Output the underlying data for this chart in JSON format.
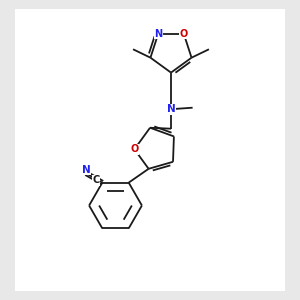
{
  "bg_color": "#e8e8e8",
  "bond_color": "#1a1a1a",
  "N_color": "#2222ee",
  "O_color": "#cc0000",
  "lw": 1.3,
  "dbo": 0.07,
  "figsize": [
    3.0,
    3.0
  ],
  "dpi": 100,
  "xlim": [
    0,
    10
  ],
  "ylim": [
    0,
    10
  ]
}
